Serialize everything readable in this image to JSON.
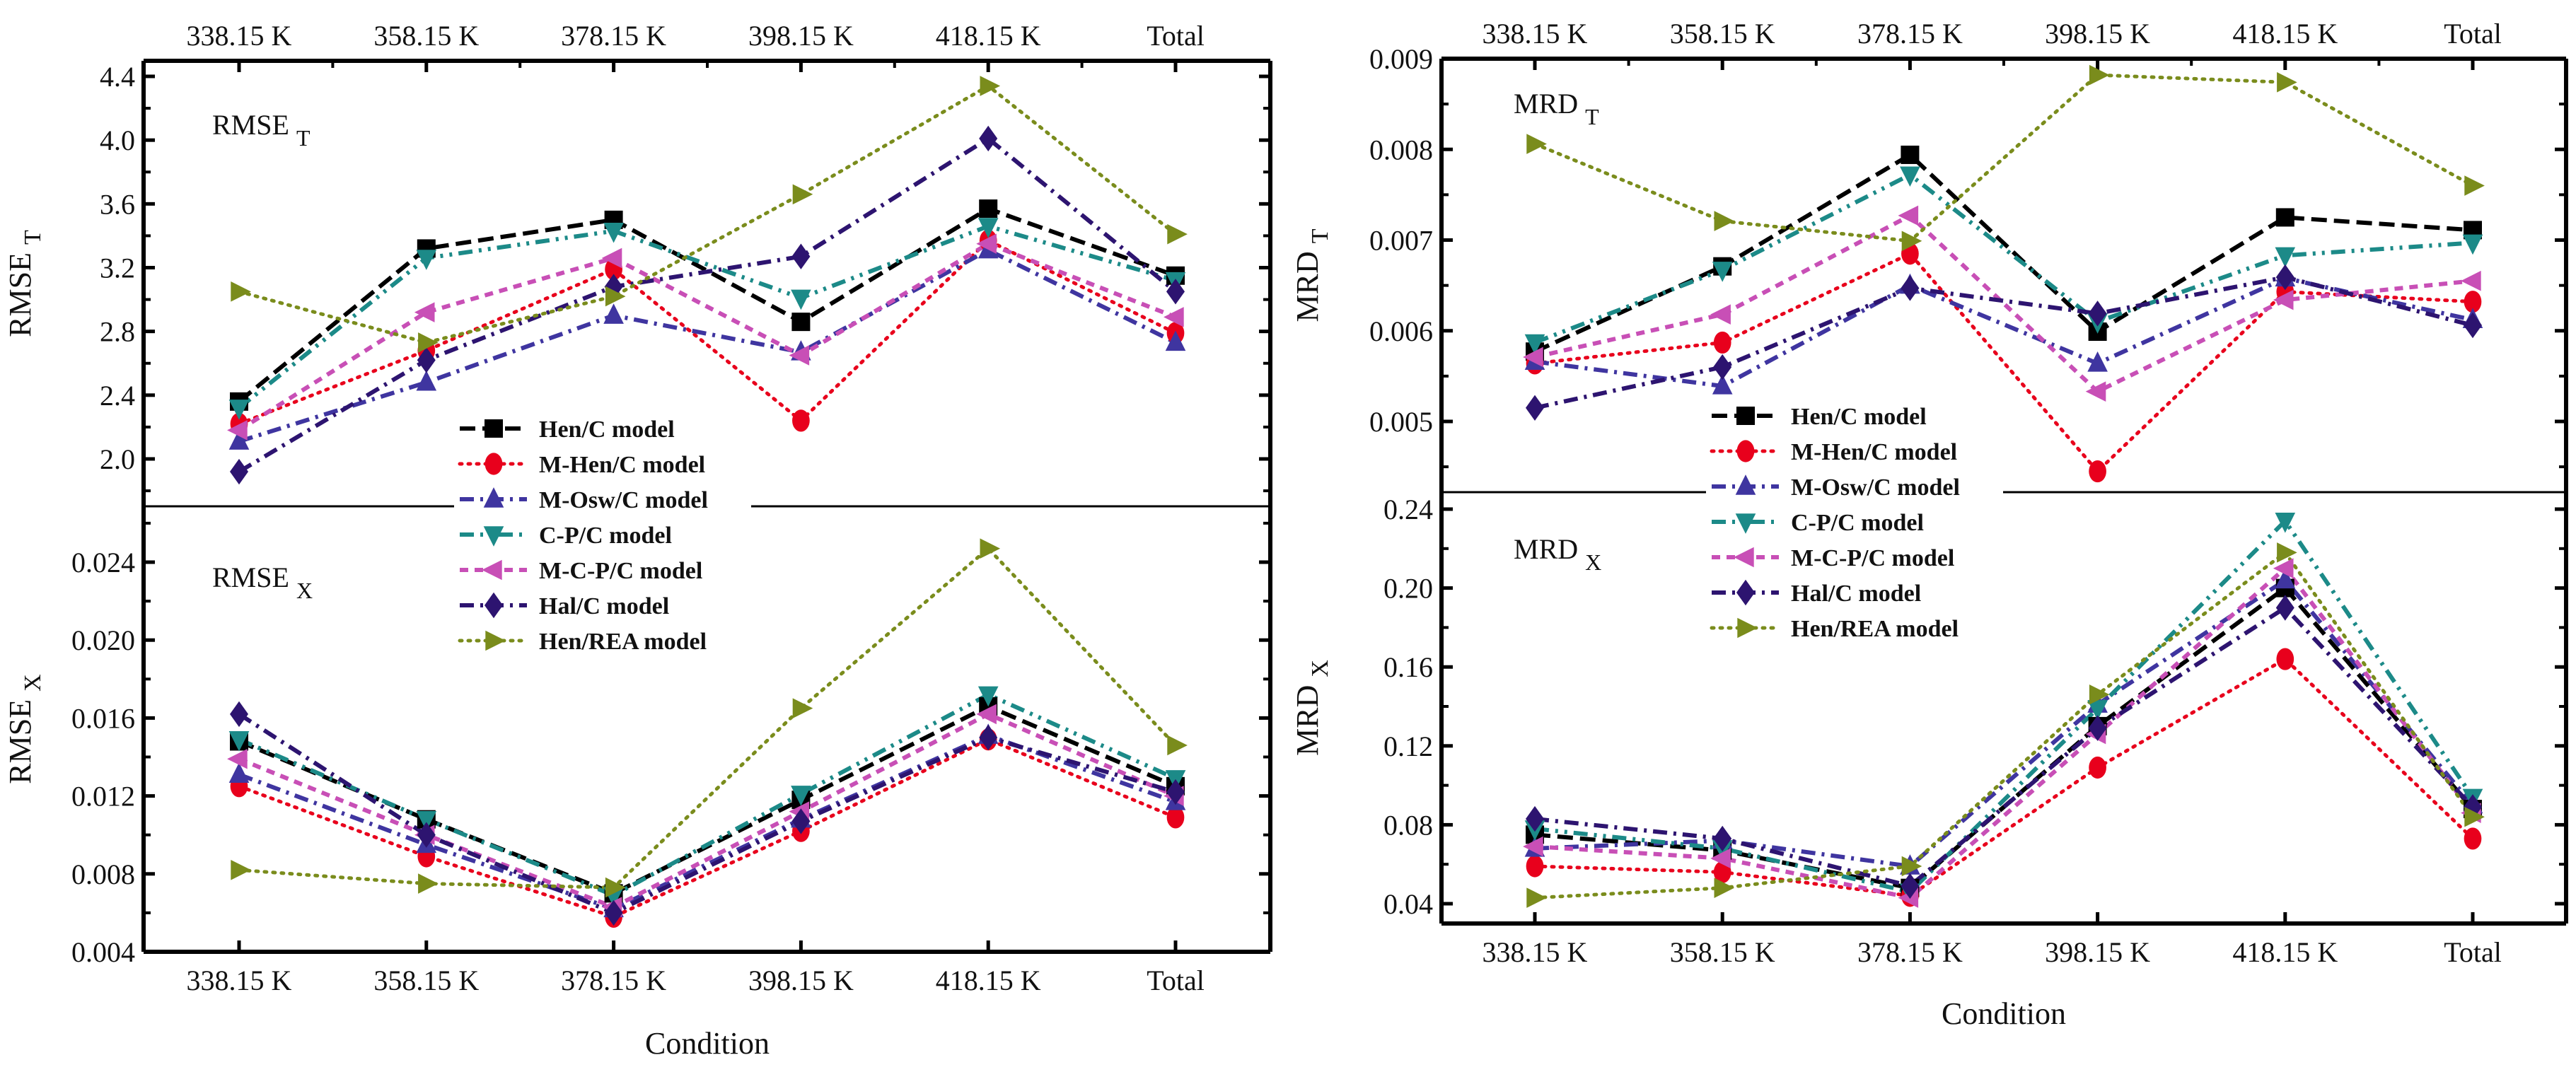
{
  "chart_data": {
    "type": "line",
    "categories": [
      "338.15 K",
      "358.15 K",
      "378.15 K",
      "398.15 K",
      "418.15 K",
      "Total"
    ],
    "shared_xlabel": "Condition",
    "legend": {
      "placement": "center (between upper and lower panels)",
      "entries": [
        "Hen/C model",
        "M-Hen/C model",
        "M-Osw/C model",
        "C-P/C model",
        "M-C-P/C model",
        "Hal/C model",
        "Hen/REA model"
      ]
    },
    "series_styles": [
      {
        "name": "Hen/C model",
        "color": "#000000",
        "marker": "square",
        "dash": "dash"
      },
      {
        "name": "M-Hen/C model",
        "color": "#e8001c",
        "marker": "circle",
        "dash": "dot"
      },
      {
        "name": "M-Osw/C model",
        "color": "#3f35a0",
        "marker": "triangle-up",
        "dash": "dash-dot"
      },
      {
        "name": "C-P/C model",
        "color": "#1c8a88",
        "marker": "triangle-down",
        "dash": "dash-dot-dot"
      },
      {
        "name": "M-C-P/C model",
        "color": "#c84fb6",
        "marker": "triangle-left",
        "dash": "short-dash"
      },
      {
        "name": "Hal/C model",
        "color": "#2d1470",
        "marker": "diamond",
        "dash": "dash-dot"
      },
      {
        "name": "Hen/REA model",
        "color": "#7a8c1c",
        "marker": "triangle-right",
        "dash": "dot"
      }
    ],
    "panels": [
      {
        "id": "rmse_t",
        "title": "RMSE T",
        "title_main": "RMSE",
        "title_sub": "T",
        "ylabel_main": "RMSE",
        "ylabel_sub": "T",
        "ylim": [
          1.7,
          4.5
        ],
        "yticks": [
          "2.0",
          "2.4",
          "2.8",
          "3.2",
          "3.6",
          "4.0",
          "4.4"
        ],
        "ytick_values": [
          2.0,
          2.4,
          2.8,
          3.2,
          3.6,
          4.0,
          4.4
        ],
        "series": [
          {
            "name": "Hen/C model",
            "values": [
              2.36,
              3.32,
              3.5,
              2.86,
              3.57,
              3.15
            ]
          },
          {
            "name": "M-Hen/C model",
            "values": [
              2.22,
              2.68,
              3.19,
              2.24,
              3.37,
              2.79
            ]
          },
          {
            "name": "M-Osw/C model",
            "values": [
              2.11,
              2.48,
              2.9,
              2.67,
              3.31,
              2.73
            ]
          },
          {
            "name": "C-P/C model",
            "values": [
              2.32,
              3.26,
              3.43,
              3.01,
              3.46,
              3.12
            ]
          },
          {
            "name": "M-C-P/C model",
            "values": [
              2.18,
              2.92,
              3.26,
              2.65,
              3.35,
              2.89
            ]
          },
          {
            "name": "Hal/C model",
            "values": [
              1.92,
              2.62,
              3.08,
              3.27,
              4.01,
              3.05
            ]
          },
          {
            "name": "Hen/REA model",
            "values": [
              3.05,
              2.73,
              3.02,
              3.66,
              4.34,
              3.41
            ]
          }
        ]
      },
      {
        "id": "rmse_x",
        "title": "RMSE X",
        "title_main": "RMSE",
        "title_sub": "X",
        "ylabel_main": "RMSE",
        "ylabel_sub": "X",
        "ylim": [
          0.004,
          0.0278
        ],
        "yticks": [
          "0.004",
          "0.008",
          "0.012",
          "0.016",
          "0.020",
          "0.024"
        ],
        "ytick_values": [
          0.004,
          0.008,
          0.012,
          0.016,
          0.02,
          0.024
        ],
        "series": [
          {
            "name": "Hen/C model",
            "values": [
              0.0148,
              0.0108,
              0.007,
              0.0118,
              0.0166,
              0.0125
            ]
          },
          {
            "name": "M-Hen/C model",
            "values": [
              0.0125,
              0.0089,
              0.0058,
              0.0102,
              0.0149,
              0.0109
            ]
          },
          {
            "name": "M-Osw/C model",
            "values": [
              0.0131,
              0.0095,
              0.0062,
              0.0108,
              0.0151,
              0.0117
            ]
          },
          {
            "name": "C-P/C model",
            "values": [
              0.0149,
              0.0108,
              0.0069,
              0.0121,
              0.0172,
              0.0129
            ]
          },
          {
            "name": "M-C-P/C model",
            "values": [
              0.0139,
              0.01,
              0.0063,
              0.0112,
              0.0162,
              0.012
            ]
          },
          {
            "name": "Hal/C model",
            "values": [
              0.0162,
              0.01,
              0.006,
              0.0107,
              0.015,
              0.0122
            ]
          },
          {
            "name": "Hen/REA model",
            "values": [
              0.0082,
              0.0075,
              0.0073,
              0.0165,
              0.0247,
              0.0146
            ]
          }
        ]
      },
      {
        "id": "mrd_t",
        "title": "MRD T",
        "title_main": "MRD",
        "title_sub": "T",
        "ylabel_main": "MRD",
        "ylabel_sub": "T",
        "ylim": [
          0.00455,
          0.009
        ],
        "yticks": [
          "0.005",
          "0.006",
          "0.007",
          "0.008",
          "0.009"
        ],
        "ytick_values": [
          0.005,
          0.006,
          0.007,
          0.008,
          0.009
        ],
        "series": [
          {
            "name": "Hen/C model",
            "values": [
              0.00577,
              0.00671,
              0.00794,
              0.00599,
              0.00725,
              0.00711
            ]
          },
          {
            "name": "M-Hen/C model",
            "values": [
              0.00564,
              0.00587,
              0.00685,
              0.00445,
              0.00643,
              0.00632
            ]
          },
          {
            "name": "M-Osw/C model",
            "values": [
              0.00566,
              0.00539,
              0.0065,
              0.00564,
              0.00658,
              0.00612
            ]
          },
          {
            "name": "C-P/C model",
            "values": [
              0.00587,
              0.00667,
              0.00772,
              0.0061,
              0.00683,
              0.00697
            ]
          },
          {
            "name": "M-C-P/C model",
            "values": [
              0.00571,
              0.00618,
              0.00727,
              0.00533,
              0.00634,
              0.00655
            ]
          },
          {
            "name": "Hal/C model",
            "values": [
              0.00515,
              0.0056,
              0.00647,
              0.00619,
              0.00659,
              0.00606
            ]
          },
          {
            "name": "Hen/REA model",
            "values": [
              0.00806,
              0.00721,
              0.00699,
              0.00882,
              0.00874,
              0.0076
            ]
          }
        ]
      },
      {
        "id": "mrd_x",
        "title": "MRD X",
        "title_main": "MRD",
        "title_sub": "X",
        "ylabel_main": "MRD",
        "ylabel_sub": "X",
        "ylim": [
          0.03,
          0.25
        ],
        "yticks": [
          "0.04",
          "0.08",
          "0.12",
          "0.16",
          "0.20",
          "0.24"
        ],
        "ytick_values": [
          0.04,
          0.08,
          0.12,
          0.16,
          0.2,
          0.24
        ],
        "series": [
          {
            "name": "Hen/C model",
            "values": [
              0.075,
              0.067,
              0.048,
              0.13,
              0.2,
              0.088
            ]
          },
          {
            "name": "M-Hen/C model",
            "values": [
              0.059,
              0.056,
              0.044,
              0.109,
              0.164,
              0.073
            ]
          },
          {
            "name": "M-Osw/C model",
            "values": [
              0.068,
              0.072,
              0.059,
              0.141,
              0.204,
              0.09
            ]
          },
          {
            "name": "C-P/C model",
            "values": [
              0.078,
              0.068,
              0.046,
              0.139,
              0.234,
              0.094
            ]
          },
          {
            "name": "M-C-P/C model",
            "values": [
              0.069,
              0.063,
              0.043,
              0.126,
              0.21,
              0.086
            ]
          },
          {
            "name": "Hal/C model",
            "values": [
              0.083,
              0.073,
              0.049,
              0.129,
              0.19,
              0.089
            ]
          },
          {
            "name": "Hen/REA model",
            "values": [
              0.043,
              0.048,
              0.059,
              0.146,
              0.218,
              0.084
            ]
          }
        ]
      }
    ]
  }
}
